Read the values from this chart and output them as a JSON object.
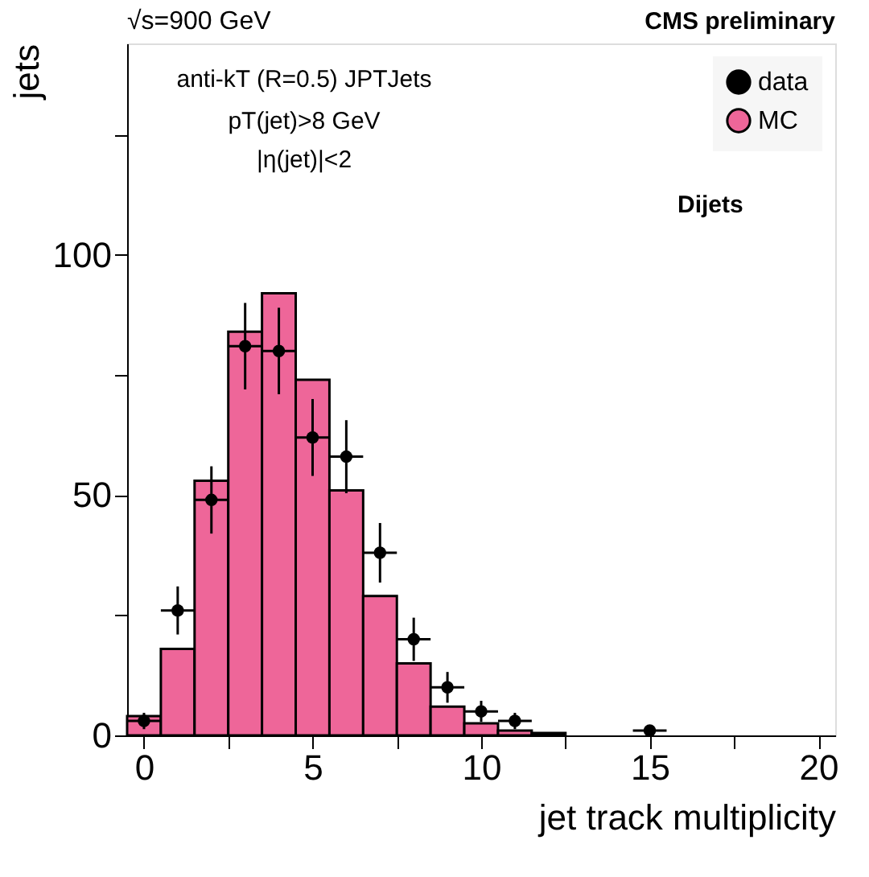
{
  "chart_data": {
    "type": "histogram",
    "xlabel": "jet track multiplicity",
    "ylabel": "jets",
    "annotations": [
      "√s=900 GeV",
      "CMS preliminary",
      "anti-kT (R=0.5) JPTJets",
      "pT(jet)>8 GeV",
      "|η(jet)|<2",
      "Dijets"
    ],
    "bins": [
      -0.5,
      0.5,
      1.5,
      2.5,
      3.5,
      4.5,
      5.5,
      6.5,
      7.5,
      8.5,
      9.5,
      10.5,
      11.5,
      12.5,
      13.5,
      14.5,
      15.5,
      16.5,
      17.5,
      18.5,
      19.5,
      20.5
    ],
    "series": [
      {
        "name": "data",
        "type": "scatter",
        "color": "#000000",
        "x": [
          0,
          1,
          2,
          3,
          4,
          5,
          6,
          7,
          8,
          9,
          10,
          11,
          15
        ],
        "values": [
          3,
          26,
          49,
          81,
          80,
          62,
          58,
          38,
          20,
          10,
          5,
          3,
          1
        ],
        "errors": [
          1.7,
          5,
          7,
          9,
          9,
          8,
          7.6,
          6.2,
          4.5,
          3.2,
          2.2,
          1.7,
          1
        ],
        "xerrors": [
          0.5,
          0.5,
          0.5,
          0.5,
          0.5,
          0.5,
          0.5,
          0.5,
          0.5,
          0.5,
          0.5,
          0.5,
          0.5
        ]
      },
      {
        "name": "MC",
        "color": "#ee6699",
        "values": [
          4,
          18,
          53,
          84,
          92,
          74,
          51,
          29,
          15,
          6,
          2.5,
          1,
          0.5,
          null,
          null,
          null,
          null,
          null,
          null,
          null,
          null
        ]
      }
    ],
    "xlim": [
      -0.5,
      20.5
    ],
    "xticks": [
      0,
      {
        "value": 2.5,
        "label": null
      },
      5,
      {
        "value": 7.5,
        "label": null
      },
      10,
      {
        "value": 12.5,
        "label": null
      },
      15,
      {
        "value": 17.5,
        "label": null
      },
      20
    ],
    "ylim": [
      0,
      144
    ],
    "yticks": [
      0,
      {
        "value": 25,
        "label": null
      },
      50,
      {
        "value": 75,
        "label": null
      },
      100,
      {
        "value": 125,
        "label": null
      }
    ],
    "legend": "top right",
    "marker": "circle",
    "grid": false
  }
}
